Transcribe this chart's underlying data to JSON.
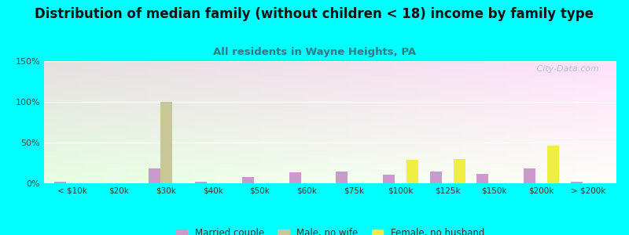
{
  "title": "Distribution of median family (without children < 18) income by family type",
  "subtitle": "All residents in Wayne Heights, PA",
  "background_color": "#00FFFF",
  "categories": [
    "< $10k",
    "$20k",
    "$30k",
    "$40k",
    "$50k",
    "$60k",
    "$75k",
    "$100k",
    "$125k",
    "$150k",
    "$200k",
    "> $200k"
  ],
  "married_couple": [
    2,
    0,
    18,
    2,
    8,
    13,
    14,
    11,
    14,
    12,
    18,
    2
  ],
  "male_no_wife": [
    0,
    0,
    100,
    0,
    0,
    0,
    0,
    0,
    0,
    0,
    0,
    0
  ],
  "female_no_husband": [
    0,
    0,
    0,
    0,
    0,
    0,
    0,
    29,
    30,
    0,
    46,
    0
  ],
  "married_color": "#cc99cc",
  "male_color": "#c8c896",
  "female_color": "#eeee44",
  "ylim": [
    0,
    150
  ],
  "yticks": [
    0,
    50,
    100,
    150
  ],
  "ytick_labels": [
    "0%",
    "50%",
    "100%",
    "150%"
  ],
  "bar_width": 0.25,
  "title_fontsize": 12,
  "subtitle_fontsize": 9.5,
  "subtitle_color": "#337788",
  "title_color": "#111111",
  "watermark": " City-Data.com"
}
